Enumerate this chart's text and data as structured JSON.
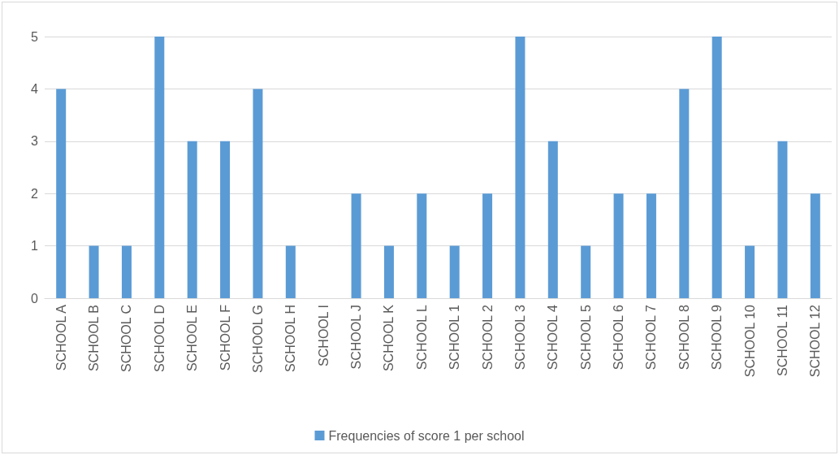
{
  "chart_data": {
    "type": "bar",
    "categories": [
      "SCHOOL A",
      "SCHOOL B",
      "SCHOOL C",
      "SCHOOL D",
      "SCHOOL E",
      "SCHOOL F",
      "SCHOOL G",
      "SCHOOL H",
      "SCHOOL I",
      "SCHOOL J",
      "SCHOOL K",
      "SCHOOL L",
      "SCHOOL 1",
      "SCHOOL 2",
      "SCHOOL 3",
      "SCHOOL 4",
      "SCHOOL 5",
      "SCHOOL 6",
      "SCHOOL 7",
      "SCHOOL 8",
      "SCHOOL 9",
      "SCHOOL 10",
      "SCHOOL 11",
      "SCHOOL 12"
    ],
    "series": [
      {
        "name": "Frequencies of score 1 per school",
        "color": "#5b9bd5",
        "values": [
          4,
          1,
          1,
          5,
          3,
          3,
          4,
          1,
          0,
          2,
          1,
          2,
          1,
          2,
          5,
          3,
          1,
          2,
          2,
          4,
          5,
          1,
          3,
          2
        ]
      }
    ],
    "ylim": [
      0,
      5
    ],
    "yticks": [
      0,
      1,
      2,
      3,
      4,
      5
    ],
    "grid": "y",
    "legend": "bottom"
  }
}
